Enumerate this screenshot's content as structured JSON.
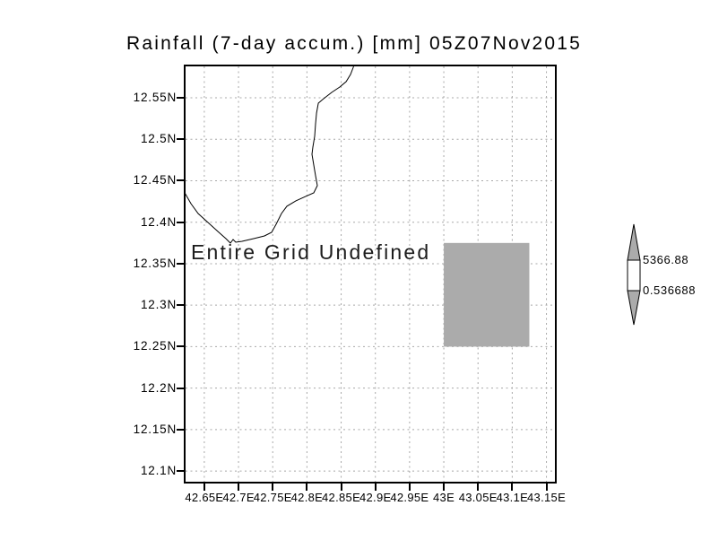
{
  "chart_data": {
    "type": "map",
    "title": "Rainfall (7-day accum.) [mm] 05Z07Nov2015",
    "status_text": "Entire Grid Undefined",
    "grid": {
      "visible": true,
      "style": "dotted",
      "color": "#a8a8a8"
    },
    "x_axis": {
      "min": 42.62,
      "max": 43.165,
      "ticks": [
        {
          "value": 42.65,
          "label": "42.65E"
        },
        {
          "value": 42.7,
          "label": "42.7E"
        },
        {
          "value": 42.75,
          "label": "42.75E"
        },
        {
          "value": 42.8,
          "label": "42.8E"
        },
        {
          "value": 42.85,
          "label": "42.85E"
        },
        {
          "value": 42.9,
          "label": "42.9E"
        },
        {
          "value": 42.95,
          "label": "42.95E"
        },
        {
          "value": 43.0,
          "label": "43E"
        },
        {
          "value": 43.05,
          "label": "43.05E"
        },
        {
          "value": 43.1,
          "label": "43.1E"
        },
        {
          "value": 43.15,
          "label": "43.15E"
        }
      ]
    },
    "y_axis": {
      "min": 12.085,
      "max": 12.59,
      "ticks": [
        {
          "value": 12.55,
          "label": "12.55N"
        },
        {
          "value": 12.5,
          "label": "12.5N"
        },
        {
          "value": 12.45,
          "label": "12.45N"
        },
        {
          "value": 12.4,
          "label": "12.4N"
        },
        {
          "value": 12.35,
          "label": "12.35N"
        },
        {
          "value": 12.3,
          "label": "12.3N"
        },
        {
          "value": 12.25,
          "label": "12.25N"
        },
        {
          "value": 12.2,
          "label": "12.2N"
        },
        {
          "value": 12.15,
          "label": "12.15N"
        },
        {
          "value": 12.1,
          "label": "12.1N"
        }
      ]
    },
    "masked_region": {
      "lon_min": 43.0,
      "lon_max": 43.125,
      "lat_min": 12.25,
      "lat_max": 12.375,
      "color": "#ababab"
    },
    "coastline": [
      [
        42.62,
        12.4375
      ],
      [
        42.6305,
        12.4224
      ],
      [
        42.641,
        12.4105
      ],
      [
        42.6554,
        12.3997
      ],
      [
        42.6698,
        12.3889
      ],
      [
        42.6816,
        12.3802
      ],
      [
        42.6881,
        12.3748
      ],
      [
        42.6921,
        12.3791
      ],
      [
        42.696,
        12.3759
      ],
      [
        42.7052,
        12.377
      ],
      [
        42.7222,
        12.3802
      ],
      [
        42.7379,
        12.3835
      ],
      [
        42.7484,
        12.3878
      ],
      [
        42.755,
        12.3975
      ],
      [
        42.7628,
        12.4105
      ],
      [
        42.7707,
        12.4192
      ],
      [
        42.7838,
        12.4257
      ],
      [
        42.7982,
        12.4311
      ],
      [
        42.81,
        12.4354
      ],
      [
        42.8152,
        12.4441
      ],
      [
        42.8126,
        12.456
      ],
      [
        42.81,
        12.4689
      ],
      [
        42.8074,
        12.4819
      ],
      [
        42.8087,
        12.4905
      ],
      [
        42.8113,
        12.5035
      ],
      [
        42.8126,
        12.5186
      ],
      [
        42.814,
        12.5316
      ],
      [
        42.8166,
        12.5435
      ],
      [
        42.8244,
        12.5489
      ],
      [
        42.8362,
        12.5565
      ],
      [
        42.848,
        12.563
      ],
      [
        42.8572,
        12.5695
      ],
      [
        42.8637,
        12.5781
      ],
      [
        42.8677,
        12.5868
      ],
      [
        42.8703,
        12.594
      ]
    ],
    "colorbar": {
      "max_label": "5366.88",
      "min_label": "0.536688",
      "arrow_color": "#ababab",
      "mid_color": "#ffffff"
    }
  }
}
